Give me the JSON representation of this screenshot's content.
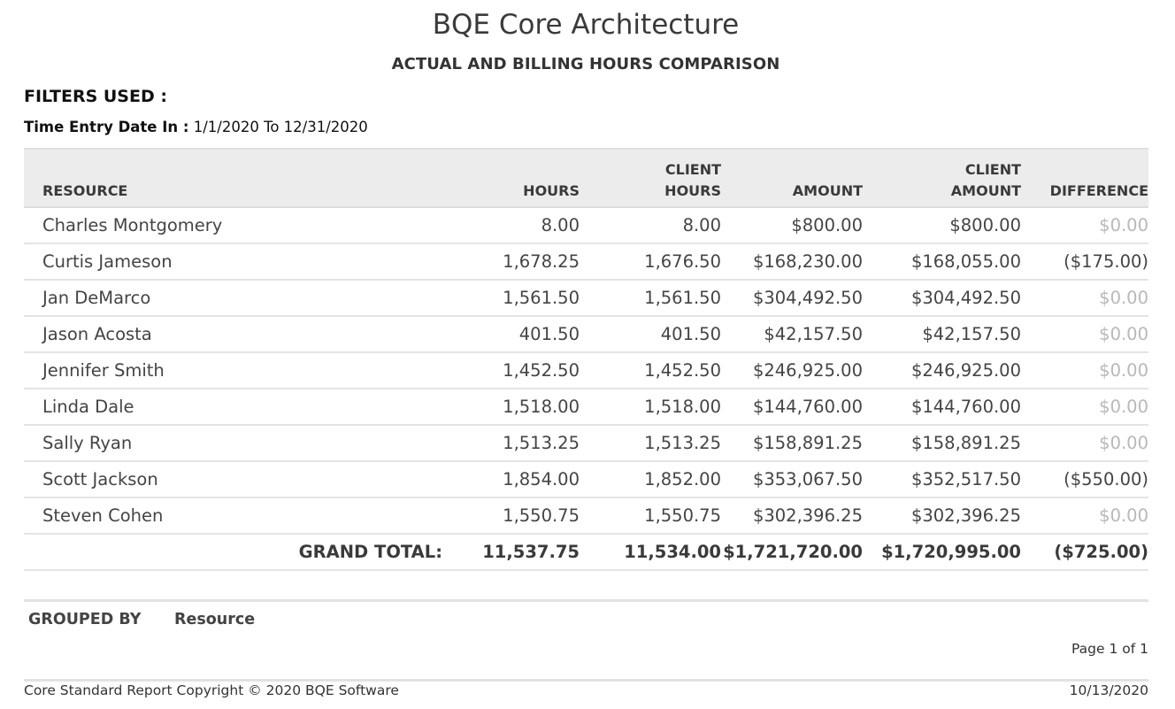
{
  "report": {
    "company": "BQE Core Architecture",
    "title": "ACTUAL AND BILLING HOURS COMPARISON"
  },
  "filters": {
    "heading": "FILTERS USED :",
    "label": "Time Entry Date In :",
    "value": "1/1/2020 To 12/31/2020"
  },
  "table": {
    "headers": {
      "resource": "RESOURCE",
      "hours": "HOURS",
      "client_hours_1": "CLIENT",
      "client_hours_2": "HOURS",
      "amount": "AMOUNT",
      "client_amount_1": "CLIENT",
      "client_amount_2": "AMOUNT",
      "difference": "DIFFERENCE"
    },
    "rows": [
      {
        "resource": "Charles Montgomery",
        "hours": "8.00",
        "client_hours": "8.00",
        "amount": "$800.00",
        "client_amount": "$800.00",
        "difference": "$0.00"
      },
      {
        "resource": "Curtis Jameson",
        "hours": "1,678.25",
        "client_hours": "1,676.50",
        "amount": "$168,230.00",
        "client_amount": "$168,055.00",
        "difference": "($175.00)"
      },
      {
        "resource": "Jan DeMarco",
        "hours": "1,561.50",
        "client_hours": "1,561.50",
        "amount": "$304,492.50",
        "client_amount": "$304,492.50",
        "difference": "$0.00"
      },
      {
        "resource": "Jason Acosta",
        "hours": "401.50",
        "client_hours": "401.50",
        "amount": "$42,157.50",
        "client_amount": "$42,157.50",
        "difference": "$0.00"
      },
      {
        "resource": "Jennifer Smith",
        "hours": "1,452.50",
        "client_hours": "1,452.50",
        "amount": "$246,925.00",
        "client_amount": "$246,925.00",
        "difference": "$0.00"
      },
      {
        "resource": "Linda Dale",
        "hours": "1,518.00",
        "client_hours": "1,518.00",
        "amount": "$144,760.00",
        "client_amount": "$144,760.00",
        "difference": "$0.00"
      },
      {
        "resource": "Sally Ryan",
        "hours": "1,513.25",
        "client_hours": "1,513.25",
        "amount": "$158,891.25",
        "client_amount": "$158,891.25",
        "difference": "$0.00"
      },
      {
        "resource": "Scott Jackson",
        "hours": "1,854.00",
        "client_hours": "1,852.00",
        "amount": "$353,067.50",
        "client_amount": "$352,517.50",
        "difference": "($550.00)"
      },
      {
        "resource": "Steven Cohen",
        "hours": "1,550.75",
        "client_hours": "1,550.75",
        "amount": "$302,396.25",
        "client_amount": "$302,396.25",
        "difference": "$0.00"
      }
    ],
    "total": {
      "label": "GRAND TOTAL:",
      "hours": "11,537.75",
      "client_hours": "11,534.00",
      "amount": "$1,721,720.00",
      "client_amount": "$1,720,995.00",
      "difference": "($725.00)"
    }
  },
  "grouping": {
    "label": "GROUPED BY",
    "value": "Resource"
  },
  "pagination": {
    "text": "Page 1 of 1"
  },
  "footer": {
    "copyright": "Core Standard Report Copyright © 2020 BQE Software",
    "date": "10/13/2020"
  },
  "colors": {
    "header_bg": "#ececec",
    "zero_value": "#b8b8b8",
    "text": "#444444"
  }
}
